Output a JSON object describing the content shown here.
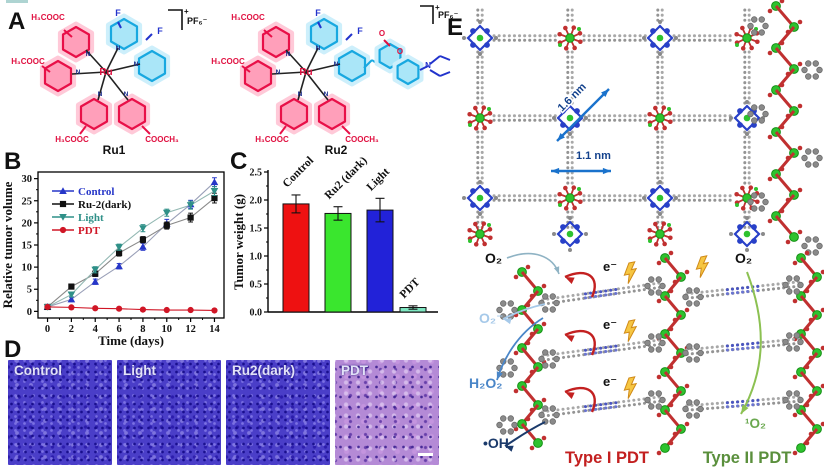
{
  "figure": {
    "panel_labels": {
      "A": "A",
      "B": "B",
      "C": "C",
      "D": "D",
      "E": "E"
    }
  },
  "panels": {
    "A": {
      "ru1": {
        "top_ester": "H₃COOC",
        "left_ester": "H₃COOC",
        "bottom_left_ester": "H₃COOC",
        "bottom_right_ester": "COOCH₃",
        "fluor_top": "F",
        "fluor_side": "F",
        "metal": "Ru",
        "nitrogen": "N",
        "charge": "+",
        "counterion": "PF₆⁻",
        "caption": "Ru1"
      },
      "ru2": {
        "top_ester": "H₃COOC",
        "left_ester": "H₃COOC",
        "bottom_left_ester": "H₃COOC",
        "bottom_right_ester": "COOCH₃",
        "fluor_top": "F",
        "fluor_side": "F",
        "metal": "Ru",
        "nitrogen": "N",
        "carbonyl_oxygen": "O",
        "ring_oxygen": "O",
        "amine_nitrogen": "N",
        "charge": "+",
        "counterion": "PF₆⁻",
        "caption": "Ru2"
      }
    },
    "D": {
      "images": [
        {
          "label": "Control"
        },
        {
          "label": "Light"
        },
        {
          "label": "Ru2(dark)"
        },
        {
          "label": "PDT"
        }
      ]
    },
    "E": {
      "pore_large": "1.6 nm",
      "pore_small": "1.1 nm",
      "oxygen": "O₂",
      "superoxide": "O₂⁻",
      "peroxide": "H₂O₂",
      "hydroxyl": "•OH",
      "electron": "e⁻",
      "oxygen_right": "O₂",
      "singlet_oxygen": "¹O₂",
      "type1": "Type I PDT",
      "type2": "Type II PDT",
      "colors": {
        "superoxide": "#a6c9e9",
        "peroxide": "#4a86c8",
        "hydroxyl": "#1b3a6b",
        "singlet": "#6aa84f",
        "type1": "#c32020",
        "type2": "#5a8f3c",
        "arrow_blue": "#1a72cc"
      }
    }
  },
  "chart_data": [
    {
      "type": "line",
      "title": "",
      "xlabel": "Time (days)",
      "ylabel": "Relative tumor volume",
      "x": [
        0,
        2,
        4,
        6,
        8,
        10,
        12,
        14
      ],
      "xticks": [
        0,
        2,
        4,
        6,
        8,
        10,
        12,
        14
      ],
      "yticks": [
        0,
        5,
        10,
        15,
        20,
        25,
        30
      ],
      "xlim": [
        -0.8,
        14.8
      ],
      "ylim": [
        -1.5,
        31.5
      ],
      "legend_position": "top-left",
      "grid": false,
      "series": [
        {
          "name": "Control",
          "color": "#2636c8",
          "line_color": "#9aa0b8",
          "marker": "triangle-up",
          "values": [
            1,
            2.7,
            6.7,
            10.2,
            14.6,
            19.8,
            24.2,
            29.2
          ],
          "errors": [
            0.3,
            0.5,
            0.6,
            0.6,
            0.8,
            1.0,
            0.9,
            1.0
          ]
        },
        {
          "name": "Ru-2(dark)",
          "color": "#111111",
          "line_color": "#8a8a8a",
          "marker": "square",
          "values": [
            1,
            5.6,
            8.5,
            13.2,
            16.2,
            19.4,
            21.2,
            25.6
          ],
          "errors": [
            0.3,
            0.5,
            0.6,
            0.7,
            0.7,
            0.8,
            1.0,
            1.1
          ]
        },
        {
          "name": "Light",
          "color": "#2f9088",
          "line_color": "#93b8b3",
          "marker": "triangle-down",
          "values": [
            1,
            3.8,
            9.4,
            14.5,
            18.8,
            22.3,
            24.0,
            27.2
          ],
          "errors": [
            0.3,
            0.5,
            0.7,
            0.7,
            0.8,
            0.8,
            0.9,
            1.0
          ]
        },
        {
          "name": "PDT",
          "color": "#d01626",
          "line_color": "#d01626",
          "marker": "circle",
          "values": [
            1,
            0.9,
            0.7,
            0.6,
            0.4,
            0.3,
            0.3,
            0.2
          ],
          "errors": [
            0.2,
            0.2,
            0.2,
            0.15,
            0.1,
            0.1,
            0.1,
            0.1
          ]
        }
      ]
    },
    {
      "type": "bar",
      "title": "",
      "xlabel": "",
      "ylabel": "Tumor weight (g)",
      "categories": [
        "Control",
        "Ru2 (dark)",
        "Light",
        "PDT"
      ],
      "values": [
        1.93,
        1.76,
        1.82,
        0.08
      ],
      "errors": [
        0.16,
        0.12,
        0.21,
        0.03
      ],
      "bar_colors": [
        "#ee1111",
        "#3ae62e",
        "#2222d8",
        "#7fe9c3"
      ],
      "ylim": [
        0,
        2.5
      ],
      "yticks": [
        0.0,
        0.5,
        1.0,
        1.5,
        2.0,
        2.5
      ],
      "grid": false
    }
  ]
}
